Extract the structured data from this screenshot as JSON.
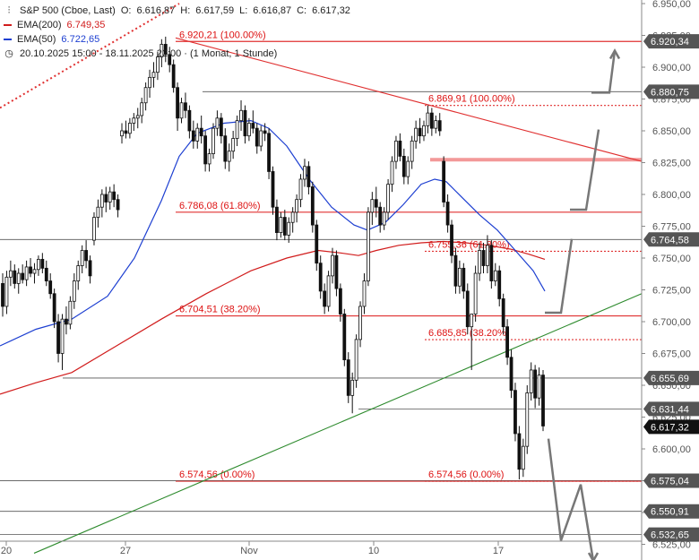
{
  "legend": {
    "title": "S&P 500 (Cboe, Last)",
    "open_label": "O:",
    "open": "6.616,87",
    "high_label": "H:",
    "high": "6.617,59",
    "low_label": "L:",
    "low": "6.616,87",
    "close_label": "C:",
    "close": "6.617,32",
    "ema200_label": "EMA(200)",
    "ema200_value": "6.749,35",
    "ema50_label": "EMA(50)",
    "ema50_value": "6.722,65",
    "period": "20.10.2025 15:00 - 18.11.2025 22:00 · (1 Monat, 1 Stunde)",
    "ema200_color": "#d11c1c",
    "ema50_color": "#1d3fd1",
    "chart_icon": "candlestick-chart-icon",
    "clock_icon": "clock-icon"
  },
  "chart_data": {
    "type": "candlestick",
    "title": "S&P 500 (Cboe, Last)",
    "timeframe": "1 Stunde",
    "x_ticks": [
      "20",
      "27",
      "Nov",
      "10",
      "17"
    ],
    "y_ticks": [
      "6.950,00",
      "6.925,00",
      "6.900,00",
      "6.875,00",
      "6.850,00",
      "6.825,00",
      "6.800,00",
      "6.775,00",
      "6.750,00",
      "6.725,00",
      "6.700,00",
      "6.675,00",
      "6.650,00",
      "6.625,00",
      "6.600,00",
      "6.575,00",
      "6.550,00",
      "6.525,00"
    ],
    "y_tick_values": [
      6950,
      6925,
      6900,
      6875,
      6850,
      6825,
      6800,
      6775,
      6750,
      6725,
      6700,
      6675,
      6650,
      6625,
      6600,
      6575,
      6550,
      6525
    ],
    "ylim": [
      6520,
      6958
    ],
    "grid": false,
    "price_levels": [
      {
        "label": "6.920,34",
        "value": 6920.34,
        "highlight": false
      },
      {
        "label": "6.880,75",
        "value": 6880.75,
        "highlight": false
      },
      {
        "label": "6.764,58",
        "value": 6764.58,
        "highlight": false
      },
      {
        "label": "6.655,69",
        "value": 6655.69,
        "highlight": false
      },
      {
        "label": "6.631,44",
        "value": 6631.44,
        "highlight": false
      },
      {
        "label": "6.617,32",
        "value": 6617.32,
        "highlight": true
      },
      {
        "label": "6.575,04",
        "value": 6575.04,
        "highlight": false
      },
      {
        "label": "6.550,91",
        "value": 6550.91,
        "highlight": false
      },
      {
        "label": "6.532,65",
        "value": 6532.65,
        "highlight": false
      }
    ],
    "fib_levels": [
      {
        "label": "6.920,21 (100.00%)",
        "value": 6920.21,
        "style": "solid"
      },
      {
        "label": "6.786,08 (61.80%)",
        "value": 6786.08,
        "style": "solid"
      },
      {
        "label": "6.704,51 (38.20%)",
        "value": 6704.51,
        "style": "solid"
      },
      {
        "label": "6.574,56 (0.00%)",
        "value": 6574.56,
        "style": "solid"
      },
      {
        "label": "6.869,91 (100.00%)",
        "value": 6869.91,
        "style": "dotted"
      },
      {
        "label": "6.755,36 (61.80%)",
        "value": 6755.36,
        "style": "dotted"
      },
      {
        "label": "6.685,85 (38.20%)",
        "value": 6685.85,
        "style": "dotted"
      },
      {
        "label": "6.574,56 (0.00%)",
        "value": 6574.56,
        "style": "dotted"
      }
    ],
    "resistance_zone": {
      "from": 6826,
      "to": 6828
    },
    "candles": [
      [
        6730,
        6738,
        6704,
        6712
      ],
      [
        6712,
        6740,
        6706,
        6735
      ],
      [
        6735,
        6748,
        6728,
        6740
      ],
      [
        6740,
        6745,
        6726,
        6730
      ],
      [
        6730,
        6742,
        6722,
        6738
      ],
      [
        6738,
        6745,
        6730,
        6733
      ],
      [
        6733,
        6748,
        6728,
        6743
      ],
      [
        6743,
        6750,
        6735,
        6738
      ],
      [
        6738,
        6746,
        6730,
        6741
      ],
      [
        6741,
        6752,
        6736,
        6749
      ],
      [
        6749,
        6754,
        6738,
        6742
      ],
      [
        6742,
        6748,
        6728,
        6732
      ],
      [
        6732,
        6738,
        6718,
        6722
      ],
      [
        6722,
        6726,
        6695,
        6700
      ],
      [
        6700,
        6706,
        6668,
        6675
      ],
      [
        6675,
        6706,
        6662,
        6702
      ],
      [
        6702,
        6712,
        6690,
        6698
      ],
      [
        6698,
        6720,
        6694,
        6716
      ],
      [
        6716,
        6738,
        6710,
        6732
      ],
      [
        6732,
        6748,
        6725,
        6744
      ],
      [
        6744,
        6760,
        6738,
        6756
      ],
      [
        6756,
        6764,
        6742,
        6748
      ],
      [
        6748,
        6752,
        6730,
        6736
      ],
      [
        6764,
        6786,
        6760,
        6782
      ],
      [
        6782,
        6796,
        6774,
        6790
      ],
      [
        6790,
        6804,
        6782,
        6800
      ],
      [
        6800,
        6806,
        6786,
        6794
      ],
      [
        6794,
        6806,
        6788,
        6802
      ],
      [
        6802,
        6808,
        6790,
        6796
      ],
      [
        6796,
        6800,
        6782,
        6788
      ],
      [
        6846,
        6856,
        6840,
        6850
      ],
      [
        6850,
        6858,
        6844,
        6848
      ],
      [
        6848,
        6860,
        6844,
        6856
      ],
      [
        6856,
        6864,
        6850,
        6860
      ],
      [
        6860,
        6868,
        6852,
        6862
      ],
      [
        6862,
        6876,
        6856,
        6872
      ],
      [
        6872,
        6888,
        6866,
        6884
      ],
      [
        6884,
        6898,
        6876,
        6892
      ],
      [
        6892,
        6904,
        6884,
        6896
      ],
      [
        6896,
        6912,
        6890,
        6908
      ],
      [
        6908,
        6922,
        6900,
        6918
      ],
      [
        6918,
        6924,
        6904,
        6910
      ],
      [
        6910,
        6916,
        6896,
        6902
      ],
      [
        6902,
        6906,
        6880,
        6884
      ],
      [
        6884,
        6888,
        6850,
        6860
      ],
      [
        6860,
        6876,
        6856,
        6872
      ],
      [
        6872,
        6880,
        6860,
        6866
      ],
      [
        6866,
        6870,
        6844,
        6850
      ],
      [
        6850,
        6858,
        6836,
        6842
      ],
      [
        6842,
        6856,
        6836,
        6852
      ],
      [
        6852,
        6862,
        6840,
        6846
      ],
      [
        6846,
        6850,
        6818,
        6824
      ],
      [
        6824,
        6836,
        6818,
        6832
      ],
      [
        6832,
        6856,
        6828,
        6852
      ],
      [
        6852,
        6866,
        6846,
        6860
      ],
      [
        6860,
        6864,
        6840,
        6846
      ],
      [
        6846,
        6852,
        6820,
        6826
      ],
      [
        6826,
        6840,
        6818,
        6834
      ],
      [
        6834,
        6850,
        6828,
        6844
      ],
      [
        6844,
        6862,
        6838,
        6858
      ],
      [
        6858,
        6874,
        6850,
        6866
      ],
      [
        6866,
        6870,
        6840,
        6846
      ],
      [
        6846,
        6860,
        6842,
        6856
      ],
      [
        6856,
        6866,
        6848,
        6852
      ],
      [
        6852,
        6856,
        6832,
        6838
      ],
      [
        6838,
        6854,
        6834,
        6850
      ],
      [
        6850,
        6856,
        6842,
        6848
      ],
      [
        6848,
        6852,
        6812,
        6818
      ],
      [
        6818,
        6822,
        6784,
        6790
      ],
      [
        6790,
        6796,
        6764,
        6770
      ],
      [
        6770,
        6786,
        6766,
        6782
      ],
      [
        6782,
        6788,
        6764,
        6768
      ],
      [
        6768,
        6782,
        6762,
        6778
      ],
      [
        6778,
        6790,
        6770,
        6786
      ],
      [
        6786,
        6800,
        6778,
        6796
      ],
      [
        6796,
        6816,
        6790,
        6812
      ],
      [
        6812,
        6828,
        6806,
        6822
      ],
      [
        6822,
        6826,
        6800,
        6806
      ],
      [
        6806,
        6810,
        6770,
        6776
      ],
      [
        6776,
        6780,
        6740,
        6746
      ],
      [
        6746,
        6752,
        6718,
        6724
      ],
      [
        6724,
        6730,
        6706,
        6712
      ],
      [
        6712,
        6740,
        6708,
        6736
      ],
      [
        6736,
        6758,
        6730,
        6752
      ],
      [
        6752,
        6756,
        6720,
        6726
      ],
      [
        6726,
        6730,
        6700,
        6706
      ],
      [
        6706,
        6710,
        6665,
        6670
      ],
      [
        6670,
        6676,
        6636,
        6642
      ],
      [
        6642,
        6660,
        6628,
        6654
      ],
      [
        6654,
        6690,
        6648,
        6686
      ],
      [
        6686,
        6716,
        6680,
        6712
      ],
      [
        6712,
        6738,
        6706,
        6732
      ],
      [
        6732,
        6790,
        6728,
        6786
      ],
      [
        6786,
        6802,
        6776,
        6796
      ],
      [
        6796,
        6806,
        6782,
        6790
      ],
      [
        6790,
        6794,
        6770,
        6776
      ],
      [
        6776,
        6790,
        6772,
        6786
      ],
      [
        6786,
        6812,
        6780,
        6808
      ],
      [
        6808,
        6830,
        6802,
        6826
      ],
      [
        6826,
        6846,
        6820,
        6842
      ],
      [
        6842,
        6848,
        6826,
        6830
      ],
      [
        6830,
        6836,
        6808,
        6814
      ],
      [
        6814,
        6830,
        6808,
        6826
      ],
      [
        6826,
        6846,
        6820,
        6842
      ],
      [
        6842,
        6858,
        6836,
        6852
      ],
      [
        6852,
        6860,
        6840,
        6846
      ],
      [
        6846,
        6858,
        6842,
        6854
      ],
      [
        6854,
        6870,
        6848,
        6864
      ],
      [
        6864,
        6868,
        6846,
        6852
      ],
      [
        6852,
        6862,
        6848,
        6858
      ],
      [
        6858,
        6864,
        6846,
        6850
      ],
      [
        6826,
        6830,
        6790,
        6794
      ],
      [
        6794,
        6800,
        6770,
        6776
      ],
      [
        6776,
        6780,
        6746,
        6752
      ],
      [
        6752,
        6758,
        6722,
        6728
      ],
      [
        6728,
        6748,
        6722,
        6742
      ],
      [
        6742,
        6746,
        6718,
        6724
      ],
      [
        6724,
        6730,
        6690,
        6696
      ],
      [
        6696,
        6702,
        6662,
        6706
      ],
      [
        6706,
        6744,
        6700,
        6738
      ],
      [
        6738,
        6762,
        6732,
        6756
      ],
      [
        6756,
        6762,
        6738,
        6744
      ],
      [
        6744,
        6768,
        6738,
        6760
      ],
      [
        6760,
        6764,
        6726,
        6732
      ],
      [
        6732,
        6746,
        6728,
        6740
      ],
      [
        6740,
        6744,
        6712,
        6718
      ],
      [
        6718,
        6722,
        6690,
        6696
      ],
      [
        6696,
        6702,
        6666,
        6672
      ],
      [
        6672,
        6678,
        6640,
        6646
      ],
      [
        6646,
        6652,
        6606,
        6612
      ],
      [
        6612,
        6618,
        6576,
        6584
      ],
      [
        6584,
        6608,
        6578,
        6602
      ],
      [
        6602,
        6650,
        6596,
        6644
      ],
      [
        6644,
        6668,
        6638,
        6662
      ],
      [
        6662,
        6666,
        6632,
        6640
      ],
      [
        6640,
        6664,
        6634,
        6658
      ],
      [
        6658,
        6662,
        6614,
        6618
      ]
    ],
    "ema50": [
      [
        0,
        6681
      ],
      [
        40,
        6694
      ],
      [
        80,
        6702
      ],
      [
        120,
        6720
      ],
      [
        150,
        6750
      ],
      [
        180,
        6795
      ],
      [
        200,
        6830
      ],
      [
        220,
        6848
      ],
      [
        250,
        6856
      ],
      [
        280,
        6858
      ],
      [
        300,
        6852
      ],
      [
        320,
        6838
      ],
      [
        345,
        6812
      ],
      [
        370,
        6790
      ],
      [
        395,
        6776
      ],
      [
        410,
        6772
      ],
      [
        430,
        6778
      ],
      [
        450,
        6792
      ],
      [
        470,
        6808
      ],
      [
        485,
        6812
      ],
      [
        498,
        6810
      ],
      [
        515,
        6798
      ],
      [
        535,
        6784
      ],
      [
        555,
        6772
      ],
      [
        575,
        6756
      ],
      [
        595,
        6740
      ],
      [
        608,
        6724
      ]
    ],
    "ema200": [
      [
        0,
        6643
      ],
      [
        40,
        6652
      ],
      [
        80,
        6660
      ],
      [
        130,
        6681
      ],
      [
        180,
        6702
      ],
      [
        230,
        6722
      ],
      [
        280,
        6740
      ],
      [
        320,
        6750
      ],
      [
        355,
        6756
      ],
      [
        380,
        6754
      ],
      [
        400,
        6752
      ],
      [
        420,
        6756
      ],
      [
        445,
        6760
      ],
      [
        470,
        6762
      ],
      [
        495,
        6763
      ],
      [
        520,
        6762
      ],
      [
        545,
        6760
      ],
      [
        570,
        6757
      ],
      [
        590,
        6753
      ],
      [
        608,
        6749
      ]
    ],
    "trendlines": [
      {
        "name": "",
        "color": "#e03030",
        "points": [
          [
            196,
            6923
          ],
          [
            716,
            6826
          ]
        ]
      },
      {
        "name": "",
        "color": "#2e8b2e",
        "points": [
          [
            38,
            6518
          ],
          [
            716,
            6722
          ]
        ]
      },
      {
        "name": "",
        "color": "#e03030",
        "dashed": true,
        "points": [
          [
            0,
            6868
          ],
          [
            200,
            6950
          ]
        ]
      }
    ],
    "projection": [
      [
        660,
        6880
      ],
      [
        680,
        6880
      ],
      [
        686,
        6913
      ],
      [
        636,
        6788
      ],
      [
        654,
        6788
      ],
      [
        668,
        6851
      ],
      [
        608,
        6707
      ],
      [
        626,
        6707
      ],
      [
        638,
        6765
      ],
      [
        612,
        6608
      ],
      [
        626,
        6528
      ],
      [
        648,
        6572
      ],
      [
        662,
        6512
      ]
    ]
  }
}
